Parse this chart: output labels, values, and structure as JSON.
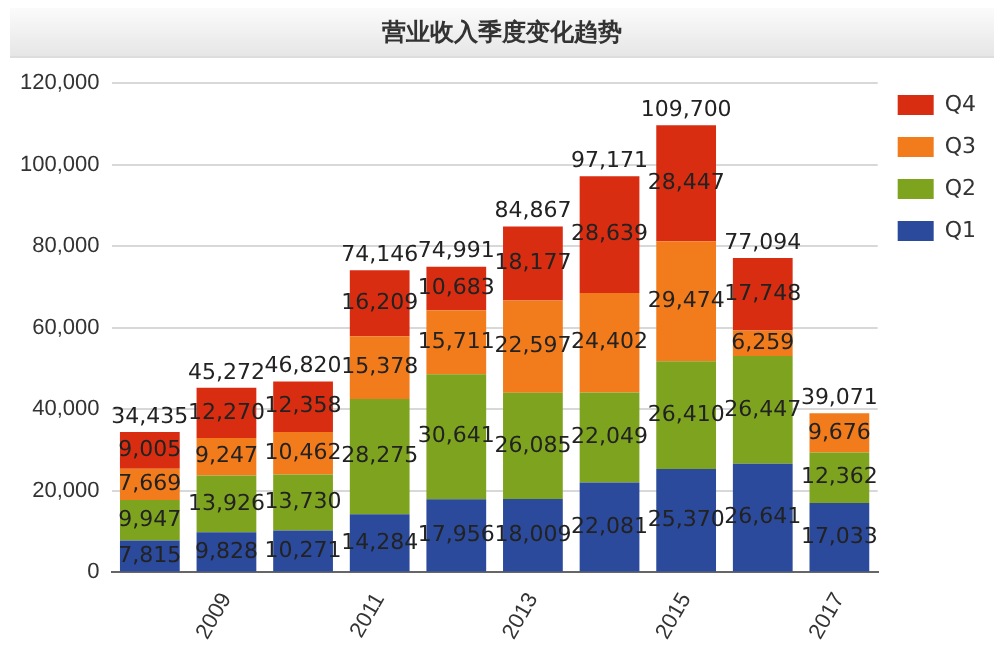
{
  "chart_data": {
    "type": "bar",
    "title": "营业收入季度变化趋势",
    "stacked": true,
    "categories": [
      null,
      "2009",
      null,
      "2011",
      null,
      "2013",
      null,
      "2015",
      null,
      "2017"
    ],
    "series": [
      {
        "name": "Q1",
        "color": "#2b4a9b",
        "values": [
          7815,
          9828,
          10271,
          14284,
          17956,
          18009,
          22081,
          25370,
          26641,
          17033
        ],
        "value_labels": [
          "7,815",
          "9,828",
          "10,271",
          "14,284",
          "17,956",
          "18,009",
          "22,081",
          "25,370",
          "26,641",
          "17,033"
        ]
      },
      {
        "name": "Q2",
        "color": "#7ea41f",
        "values": [
          9947,
          13926,
          13730,
          28275,
          30641,
          26085,
          22049,
          26410,
          26447,
          12362
        ],
        "value_labels": [
          "9,947",
          "13,926",
          "13,730",
          "28,275",
          "30,641",
          "26,085",
          "22,049",
          "26,410",
          "26,447",
          "12,362"
        ]
      },
      {
        "name": "Q3",
        "color": "#f27b1c",
        "values": [
          7669,
          9247,
          10462,
          15378,
          15711,
          22597,
          24402,
          29474,
          6259,
          9676
        ],
        "value_labels": [
          "7,669",
          "9,247",
          "10,462",
          "15,378",
          "15,711",
          "22,597",
          "24,402",
          "29,474",
          "6,259",
          "9,676"
        ]
      },
      {
        "name": "Q4",
        "color": "#d92d12",
        "values": [
          9005,
          12270,
          12358,
          16209,
          10683,
          18177,
          28639,
          28447,
          17748,
          null
        ],
        "value_labels": [
          "9,005",
          "12,270",
          "12,358",
          "16,209",
          "10,683",
          "18,177",
          "28,639",
          "28,447",
          "17,748",
          null
        ]
      }
    ],
    "totals": [
      "34,435",
      "45,272",
      "46,820",
      "74,146",
      "74,991",
      "84,867",
      "97,171",
      "109,700",
      "77,094",
      "39,071"
    ],
    "ylim": [
      0,
      120000
    ],
    "yticks": [
      {
        "value": 0,
        "label": "0"
      },
      {
        "value": 20000,
        "label": "20,000"
      },
      {
        "value": 40000,
        "label": "40,000"
      },
      {
        "value": 60000,
        "label": "60,000"
      },
      {
        "value": 80000,
        "label": "80,000"
      },
      {
        "value": 100000,
        "label": "100,000"
      },
      {
        "value": 120000,
        "label": "120,000"
      }
    ],
    "grid": "y",
    "legend": "top right"
  }
}
